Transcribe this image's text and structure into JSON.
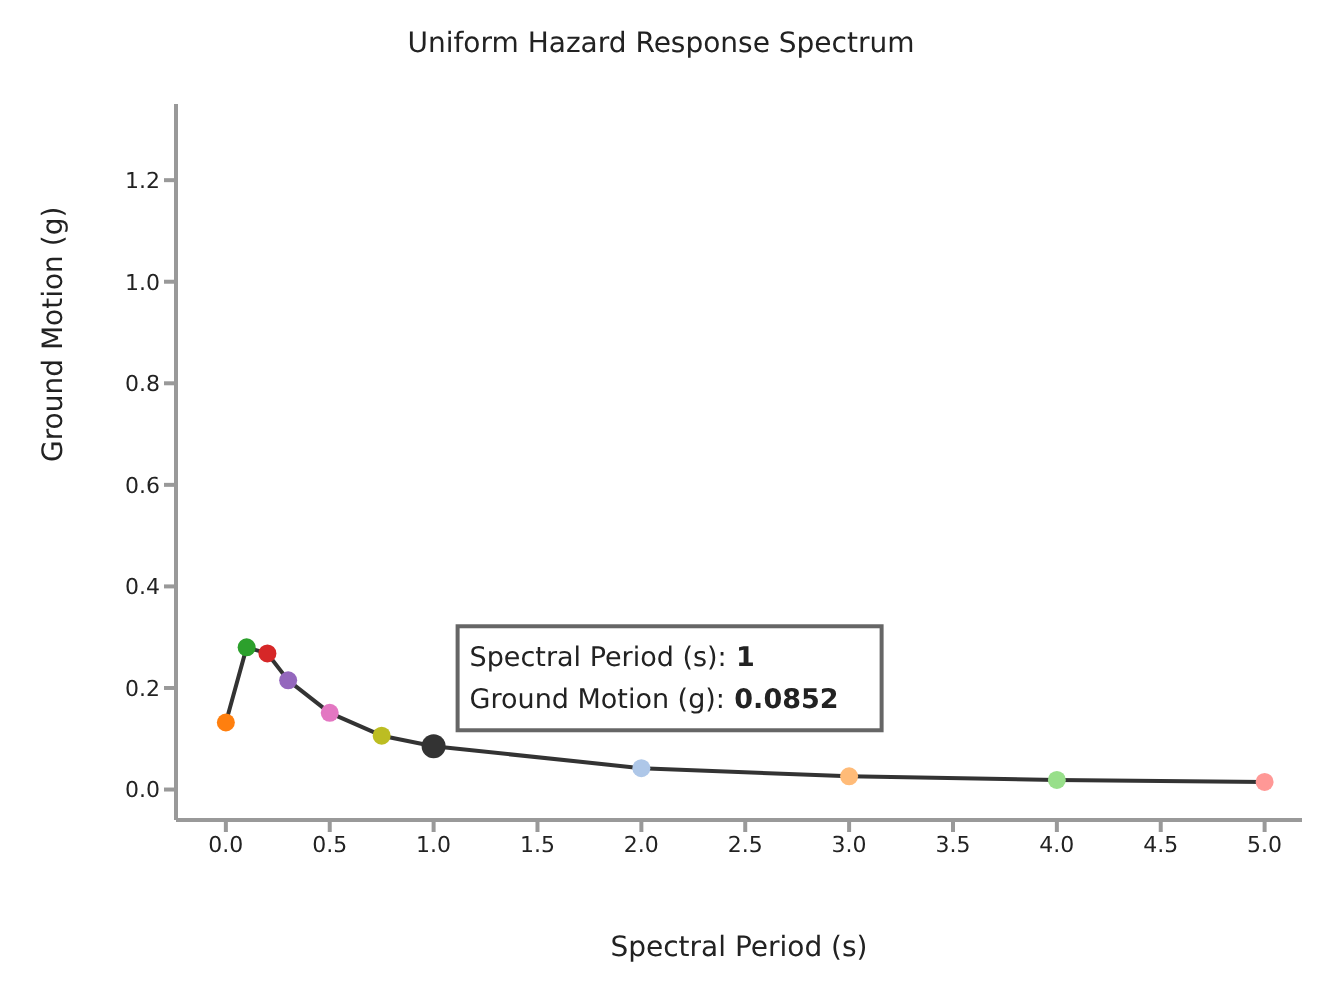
{
  "chart_data": {
    "type": "line",
    "title": "Uniform Hazard Response Spectrum",
    "xlabel": "Spectral Period (s)",
    "ylabel": "Ground Motion (g)",
    "x": [
      0,
      0.1,
      0.2,
      0.3,
      0.5,
      0.75,
      1,
      2,
      3,
      4,
      5
    ],
    "series": [
      {
        "color": "#333333",
        "colors": [
          "#ff7f0e",
          "#2ca02c",
          "#d62728",
          "#9467bd",
          "#e377c2",
          "#bcbd22",
          "#333333",
          "#aec7e8",
          "#ffbb78",
          "#98df8a",
          "#ff9896"
        ],
        "values": [
          0.132,
          0.28,
          0.268,
          0.215,
          0.151,
          0.106,
          0.0852,
          0.042,
          0.026,
          0.019,
          0.015
        ]
      }
    ],
    "xlim": [
      -0.24,
      5.18
    ],
    "xticks": [
      {
        "value": 0,
        "label": "0.0"
      },
      {
        "value": 0.5,
        "label": "0.5"
      },
      {
        "value": 1,
        "label": "1.0"
      },
      {
        "value": 1.5,
        "label": "1.5"
      },
      {
        "value": 2,
        "label": "2.0"
      },
      {
        "value": 2.5,
        "label": "2.5"
      },
      {
        "value": 3,
        "label": "3.0"
      },
      {
        "value": 3.5,
        "label": "3.5"
      },
      {
        "value": 4,
        "label": "4.0"
      },
      {
        "value": 4.5,
        "label": "4.5"
      },
      {
        "value": 5,
        "label": "5.0"
      }
    ],
    "ylim": [
      -0.06,
      1.35
    ],
    "yticks": [
      {
        "value": 0,
        "label": "0.0"
      },
      {
        "value": 0.2,
        "label": "0.2"
      },
      {
        "value": 0.4,
        "label": "0.4"
      },
      {
        "value": 0.6,
        "label": "0.6"
      },
      {
        "value": 0.8,
        "label": "0.8"
      },
      {
        "value": 1,
        "label": "1.0"
      },
      {
        "value": 1.2,
        "label": "1.2"
      }
    ],
    "grid": false,
    "legend": false,
    "marker": "circle",
    "line_style": "solid",
    "annotations": [
      {
        "text": "Spectral Period (s): 1\nGround Motion (g): 0.0852",
        "x": 1,
        "y": 0.0852
      }
    ]
  }
}
